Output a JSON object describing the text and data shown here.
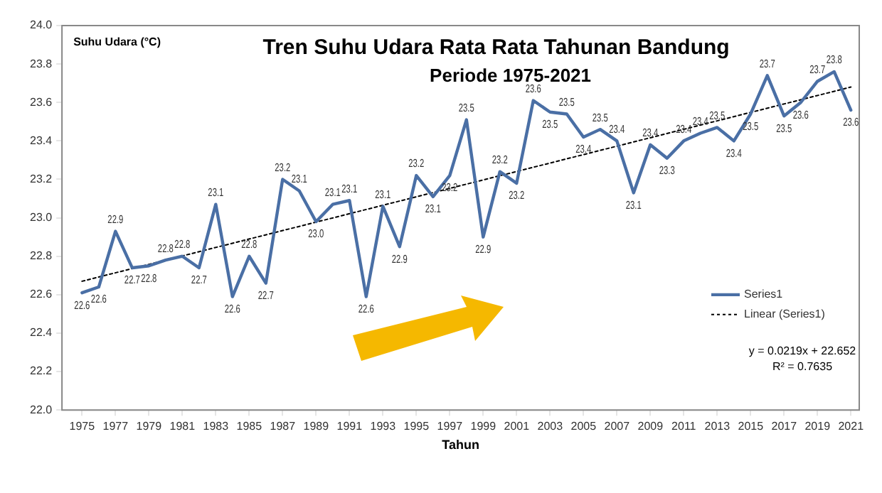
{
  "chart_data": {
    "type": "line",
    "title": "Tren Suhu Udara Rata Rata Tahunan Bandung",
    "subtitle": "Periode 1975-2021",
    "xlabel": "Tahun",
    "ylabel": "Suhu Udara (°C)",
    "xlim": [
      1973.8,
      2021.5
    ],
    "xticks": [
      1975,
      1977,
      1979,
      1981,
      1983,
      1985,
      1987,
      1989,
      1991,
      1993,
      1995,
      1997,
      1999,
      2001,
      2003,
      2005,
      2007,
      2009,
      2011,
      2013,
      2015,
      2017,
      2019,
      2021
    ],
    "ylim": [
      22,
      24
    ],
    "yticks": [
      {
        "value": 22,
        "label": "22.0"
      },
      {
        "value": 22.2,
        "label": "22.2"
      },
      {
        "value": 22.4,
        "label": "22.4"
      },
      {
        "value": 22.6,
        "label": "22.6"
      },
      {
        "value": 22.8,
        "label": "22.8"
      },
      {
        "value": 23,
        "label": "23.0"
      },
      {
        "value": 23.2,
        "label": "23.2"
      },
      {
        "value": 23.4,
        "label": "23.4"
      },
      {
        "value": 23.6,
        "label": "23.6"
      },
      {
        "value": 23.8,
        "label": "23.8"
      },
      {
        "value": 24,
        "label": "24.0"
      }
    ],
    "x": [
      1975,
      1976,
      1977,
      1978,
      1979,
      1980,
      1981,
      1982,
      1983,
      1984,
      1985,
      1986,
      1987,
      1988,
      1989,
      1990,
      1991,
      1992,
      1993,
      1994,
      1995,
      1996,
      1997,
      1998,
      1999,
      2000,
      2001,
      2002,
      2003,
      2004,
      2005,
      2006,
      2007,
      2008,
      2009,
      2010,
      2011,
      2012,
      2013,
      2014,
      2015,
      2016,
      2017,
      2018,
      2019,
      2020,
      2021
    ],
    "series": [
      {
        "name": "Series1",
        "color": "#4a6fa5",
        "line_style": "solid",
        "values": [
          22.61,
          22.64,
          22.93,
          22.74,
          22.75,
          22.78,
          22.8,
          22.74,
          23.07,
          22.59,
          22.8,
          22.66,
          23.2,
          23.14,
          22.98,
          23.07,
          23.09,
          22.59,
          23.06,
          22.85,
          23.22,
          23.11,
          23.22,
          23.51,
          22.9,
          23.24,
          23.18,
          23.61,
          23.55,
          23.54,
          23.42,
          23.46,
          23.4,
          23.13,
          23.38,
          23.31,
          23.4,
          23.44,
          23.47,
          23.4,
          23.54,
          23.74,
          23.53,
          23.6,
          23.71,
          23.76,
          23.56
        ],
        "value_labels": [
          "22.6",
          "22.6",
          "22.9",
          "22.7",
          "22.8",
          "22.8",
          "22.8",
          "22.7",
          "23.1",
          "22.6",
          "22.8",
          "22.7",
          "23.2",
          "23.1",
          "23.0",
          "23.1",
          "23.1",
          "22.6",
          "23.1",
          "22.9",
          "23.2",
          "23.1",
          "23.2",
          "23.5",
          "22.9",
          "23.2",
          "23.2",
          "23.6",
          "23.5",
          "23.5",
          "23.4",
          "23.5",
          "23.4",
          "23.1",
          "23.4",
          "23.3",
          "23.4",
          "23.4",
          "23.5",
          "23.4",
          "23.5",
          "23.7",
          "23.5",
          "23.6",
          "23.7",
          "23.8",
          "23.6"
        ]
      },
      {
        "name": "Linear (Series1)",
        "type": "line",
        "color": "#000000",
        "line_style": "dotted",
        "x": [
          1975,
          2021
        ],
        "values": [
          22.67,
          23.68
        ]
      }
    ],
    "marker": "none",
    "grid": false,
    "legend": "right",
    "annotations": [
      "y = 0.0219x + 22.652",
      "R² = 0.7635"
    ]
  }
}
